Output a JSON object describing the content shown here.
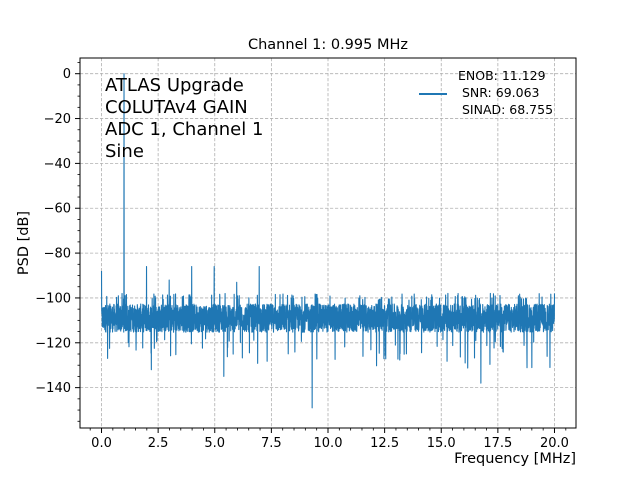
{
  "chart_data": {
    "type": "line",
    "title": "Channel 1: 0.995 MHz",
    "xlabel": "Frequency [MHz]",
    "ylabel": "PSD [dB]",
    "xlim": [
      -0.95,
      20.95
    ],
    "ylim": [
      -158,
      7
    ],
    "xticks": [
      0.0,
      2.5,
      5.0,
      7.5,
      10.0,
      12.5,
      15.0,
      17.5,
      20.0
    ],
    "xtick_labels": [
      "0.0",
      "2.5",
      "5.0",
      "7.5",
      "10.0",
      "12.5",
      "15.0",
      "17.5",
      "20.0"
    ],
    "yticks": [
      0,
      -20,
      -40,
      -60,
      -80,
      -100,
      -120,
      -140
    ],
    "ytick_labels": [
      "0",
      "−20",
      "−40",
      "−60",
      "−80",
      "−100",
      "−120",
      "−140"
    ],
    "grid": true,
    "legend_position": "top-right",
    "annotation_lines": [
      "ATLAS Upgrade",
      "COLUTAv4 GAIN",
      "ADC 1, Channel 1",
      "Sine"
    ],
    "legend_lines": [
      "ENOB: 11.129",
      " SNR: 69.063",
      " SINAD: 68.755"
    ],
    "series": [
      {
        "color": "#1f77b4",
        "noise_floor_band_db": [
          -118,
          -100
        ],
        "peaks": [
          {
            "x": 0.0,
            "y": -88
          },
          {
            "x": 0.995,
            "y": 0
          },
          {
            "x": 1.99,
            "y": -86
          },
          {
            "x": 2.985,
            "y": -92
          },
          {
            "x": 3.98,
            "y": -86
          },
          {
            "x": 4.975,
            "y": -86
          },
          {
            "x": 5.97,
            "y": -93
          },
          {
            "x": 6.965,
            "y": -86
          },
          {
            "x": 20.0,
            "y": -98
          }
        ],
        "dips": [
          {
            "x": 0.0,
            "y": -125
          },
          {
            "x": 2.2,
            "y": -132
          },
          {
            "x": 5.4,
            "y": -135
          },
          {
            "x": 9.3,
            "y": -149
          },
          {
            "x": 16.75,
            "y": -138
          },
          {
            "x": 19.8,
            "y": -131
          }
        ]
      }
    ]
  }
}
